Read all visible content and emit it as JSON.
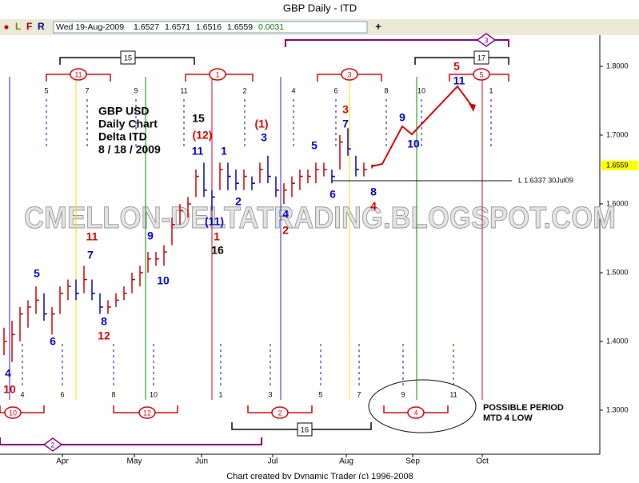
{
  "title": "GBP Daily - ITD",
  "toolbar": {
    "buttons": [
      "L",
      "F",
      "R"
    ],
    "date": "Wed 19-Aug-2009",
    "quote": [
      1.6527,
      1.6571,
      1.6516,
      1.6559,
      0.0031
    ]
  },
  "chart_data": {
    "type": "ohlc",
    "categories": [
      null,
      null,
      null,
      null,
      null,
      null,
      null,
      null,
      null,
      null,
      null,
      null,
      null,
      null,
      null,
      null,
      null,
      null,
      null,
      null,
      null,
      null,
      null,
      null,
      null,
      null,
      null,
      null,
      null,
      null,
      null,
      null,
      null,
      null,
      null,
      null,
      null,
      null,
      null,
      null,
      null,
      null,
      null,
      null,
      null,
      null,
      null
    ],
    "high": [
      1.42,
      1.43,
      1.45,
      1.46,
      1.48,
      1.47,
      1.45,
      1.48,
      1.49,
      1.49,
      1.51,
      1.49,
      1.47,
      1.46,
      1.47,
      1.48,
      1.5,
      1.51,
      1.53,
      1.53,
      1.54,
      1.58,
      1.6,
      1.61,
      1.65,
      1.66,
      1.62,
      1.66,
      1.66,
      1.65,
      1.65,
      1.64,
      1.66,
      1.67,
      1.64,
      1.63,
      1.64,
      1.65,
      1.65,
      1.66,
      1.66,
      1.65,
      1.7,
      1.71,
      1.67,
      1.66,
      1.6571
    ],
    "low": [
      1.38,
      1.37,
      1.4,
      1.42,
      1.44,
      1.43,
      1.41,
      1.44,
      1.46,
      1.46,
      1.47,
      1.46,
      1.44,
      1.44,
      1.45,
      1.46,
      1.47,
      1.48,
      1.5,
      1.51,
      1.51,
      1.54,
      1.57,
      1.58,
      1.61,
      1.61,
      1.59,
      1.62,
      1.62,
      1.62,
      1.62,
      1.62,
      1.63,
      1.63,
      1.61,
      1.6,
      1.61,
      1.62,
      1.63,
      1.63,
      1.64,
      1.63,
      1.65,
      1.67,
      1.64,
      1.64,
      1.6516
    ],
    "close": [
      1.4,
      1.41,
      1.44,
      1.45,
      1.46,
      1.44,
      1.44,
      1.47,
      1.48,
      1.47,
      1.49,
      1.47,
      1.45,
      1.45,
      1.46,
      1.47,
      1.49,
      1.5,
      1.52,
      1.52,
      1.53,
      1.57,
      1.59,
      1.6,
      1.64,
      1.62,
      1.61,
      1.65,
      1.64,
      1.63,
      1.64,
      1.63,
      1.65,
      1.64,
      1.62,
      1.62,
      1.63,
      1.64,
      1.64,
      1.65,
      1.65,
      1.64,
      1.69,
      1.68,
      1.65,
      1.65,
      1.6559
    ],
    "up_color": "#c00000",
    "down_color": "#0000b0",
    "x_labels": [
      "Apr",
      "May",
      "Jun",
      "Jul",
      "Aug",
      "Sep",
      "Oct"
    ],
    "ylim": [
      1.236,
      1.8453
    ],
    "yticks": [
      {
        "value": 1.8,
        "label": "1.8000"
      },
      {
        "value": 1.7,
        "label": "1.7000"
      },
      {
        "value": 1.6,
        "label": "1.6000"
      },
      {
        "value": 1.5,
        "label": "1.5000"
      },
      {
        "value": 1.4,
        "label": "1.4000"
      },
      {
        "value": 1.3,
        "label": "1.3000"
      }
    ],
    "last_price": 1.6559,
    "reference_line": {
      "value": 1.6337,
      "label": "L 1.6337 30Jul09"
    },
    "notes": [
      "GBP USD",
      "Daily Chart",
      "Delta ITD",
      "8 / 18 / 2009"
    ],
    "projection_note": [
      "POSSIBLE PERIOD",
      "MTD 4 LOW"
    ],
    "annotations": [
      {
        "text": "4",
        "color": "#0000c0"
      },
      {
        "text": "10",
        "color": "#d00000"
      },
      {
        "text": "5",
        "color": "#0000c0"
      },
      {
        "text": "6",
        "color": "#0000c0"
      },
      {
        "text": "7",
        "color": "#0000c0"
      },
      {
        "text": "11",
        "color": "#d00000"
      },
      {
        "text": "8",
        "color": "#0000c0"
      },
      {
        "text": "12",
        "color": "#d00000"
      },
      {
        "text": "9",
        "color": "#0000c0"
      },
      {
        "text": "10",
        "color": "#0000c0"
      },
      {
        "text": "15",
        "color": "#000000"
      },
      {
        "text": "(12)",
        "color": "#d00000"
      },
      {
        "text": "11",
        "color": "#0000c0"
      },
      {
        "text": "1",
        "color": "#0000c0"
      },
      {
        "text": "2",
        "color": "#0000c0"
      },
      {
        "text": "(11)",
        "color": "#0000c0"
      },
      {
        "text": "1",
        "color": "#d00000"
      },
      {
        "text": "16",
        "color": "#000000"
      },
      {
        "text": "(1)",
        "color": "#d00000"
      },
      {
        "text": "3",
        "color": "#0000c0"
      },
      {
        "text": "4",
        "color": "#0000c0"
      },
      {
        "text": "2",
        "color": "#d00000"
      },
      {
        "text": "5",
        "color": "#0000c0"
      },
      {
        "text": "6",
        "color": "#0000c0"
      },
      {
        "text": "3",
        "color": "#d00000"
      },
      {
        "text": "7",
        "color": "#0000c0"
      },
      {
        "text": "8",
        "color": "#0000c0"
      },
      {
        "text": "4",
        "color": "#d00000"
      },
      {
        "text": "9",
        "color": "#0000c0"
      },
      {
        "text": "10",
        "color": "#0000c0"
      },
      {
        "text": "5",
        "color": "#d00000"
      },
      {
        "text": "11",
        "color": "#0000c0"
      }
    ],
    "cycle_top": [
      "5",
      "7",
      "9",
      "11",
      "2",
      "4",
      "6",
      "8",
      "10",
      "1"
    ],
    "cycle_bottom": [
      "4",
      "6",
      "8",
      "10",
      "1",
      "3",
      "5",
      "7",
      "9",
      "11"
    ],
    "brackets": [
      "15",
      "11",
      "1",
      "3",
      "5",
      "17",
      "3",
      "10",
      "12",
      "2",
      "4",
      "16",
      "2"
    ],
    "watermark": "CMELLON-DELTATRADING.BLOGSPOT.COM"
  },
  "footer": "Chart created by Dynamic Trader (c) 1996-2008"
}
